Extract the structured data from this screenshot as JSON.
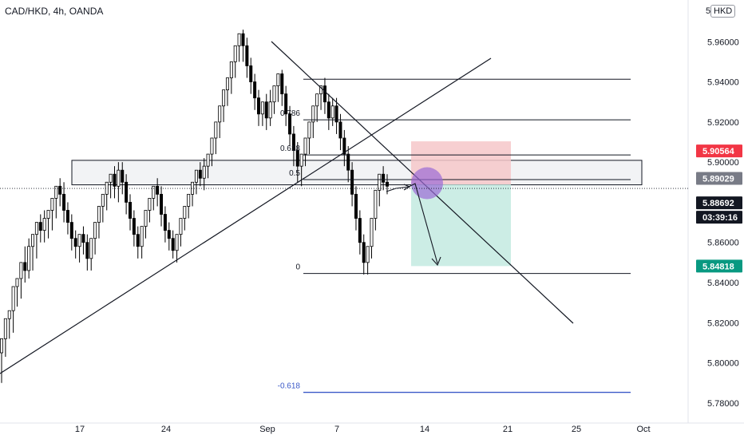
{
  "header": {
    "title": "CAD/HKD, 4h, OANDA",
    "currency": "HKD",
    "top_label": "5"
  },
  "colors": {
    "up": "#26a69a",
    "down": "#131722",
    "candle": "#000000",
    "fib_line": "#131722",
    "fib_ext": "#3c5ac8",
    "stop_zone": "#f6c7c9",
    "target_zone": "#bfe8df",
    "circle": "#9b6bd6",
    "sell_badge": "#f23645",
    "buy_badge": "#089981",
    "current_badge": "#131722",
    "mid_badge": "#787b86"
  },
  "chart_data": {
    "type": "candlestick",
    "symbol": "CAD/HKD",
    "interval": "4h",
    "source": "OANDA",
    "ylim": [
      5.77,
      5.98
    ],
    "y_ticks": [
      "5.96000",
      "5.94000",
      "5.92000",
      "5.90000",
      "5.88000",
      "5.86000",
      "5.84000",
      "5.82000",
      "5.80000",
      "5.78000"
    ],
    "x_labels": [
      "17",
      "24",
      "Sep",
      "7",
      "14",
      "21",
      "25",
      "Oct"
    ],
    "fib_levels": [
      {
        "label": "0.786",
        "price": 5.9211
      },
      {
        "label": "0.618",
        "price": 5.9036
      },
      {
        "label": "0.5",
        "price": 5.8913
      },
      {
        "label": "0",
        "price": 5.8445
      },
      {
        "label": "-0.618",
        "price": 5.7853
      }
    ],
    "fib_top_price": 5.9413,
    "zone": {
      "top": 5.9009,
      "bottom": 5.8887
    },
    "position": {
      "stop": 5.9056,
      "entry": 5.8889,
      "target": 5.8482
    },
    "price_badges": [
      {
        "value": "5.90564",
        "kind": "sell",
        "price": 5.9056
      },
      {
        "value": "5.89029",
        "kind": "mid",
        "price": 5.8903
      },
      {
        "value": "5.88692",
        "kind": "current",
        "price": 5.8869
      },
      {
        "value": "03:39:16",
        "kind": "timer",
        "price": 5.8869
      },
      {
        "value": "5.84818",
        "kind": "buy",
        "price": 5.8482
      }
    ],
    "candles": [
      [
        5.805,
        5.812,
        5.796,
        5.79
      ],
      [
        5.812,
        5.822,
        5.806,
        5.803
      ],
      [
        5.822,
        5.826,
        5.814,
        5.812
      ],
      [
        5.826,
        5.838,
        5.818,
        5.815
      ],
      [
        5.838,
        5.842,
        5.83,
        5.828
      ],
      [
        5.842,
        5.85,
        5.836,
        5.832
      ],
      [
        5.85,
        5.846,
        5.858,
        5.84
      ],
      [
        5.846,
        5.858,
        5.862,
        5.842
      ],
      [
        5.858,
        5.864,
        5.85,
        5.846
      ],
      [
        5.864,
        5.87,
        5.856,
        5.852
      ],
      [
        5.87,
        5.866,
        5.874,
        5.86
      ],
      [
        5.866,
        5.872,
        5.876,
        5.86
      ],
      [
        5.872,
        5.876,
        5.866,
        5.862
      ],
      [
        5.876,
        5.882,
        5.87,
        5.866
      ],
      [
        5.882,
        5.888,
        5.876,
        5.872
      ],
      [
        5.888,
        5.884,
        5.892,
        5.878
      ],
      [
        5.884,
        5.876,
        5.89,
        5.87
      ],
      [
        5.876,
        5.87,
        5.88,
        5.864
      ],
      [
        5.87,
        5.862,
        5.874,
        5.856
      ],
      [
        5.862,
        5.858,
        5.866,
        5.852
      ],
      [
        5.858,
        5.864,
        5.852,
        5.85
      ],
      [
        5.864,
        5.86,
        5.868,
        5.854
      ],
      [
        5.86,
        5.852,
        5.864,
        5.846
      ],
      [
        5.852,
        5.862,
        5.848,
        5.846
      ],
      [
        5.862,
        5.87,
        5.858,
        5.854
      ],
      [
        5.87,
        5.878,
        5.864,
        5.862
      ],
      [
        5.878,
        5.884,
        5.872,
        5.87
      ],
      [
        5.884,
        5.89,
        5.878,
        5.876
      ],
      [
        5.89,
        5.894,
        5.884,
        5.882
      ],
      [
        5.894,
        5.888,
        5.898,
        5.882
      ],
      [
        5.888,
        5.896,
        5.9,
        5.88
      ],
      [
        5.896,
        5.89,
        5.9,
        5.884
      ],
      [
        5.89,
        5.88,
        5.894,
        5.874
      ],
      [
        5.88,
        5.872,
        5.884,
        5.866
      ],
      [
        5.872,
        5.864,
        5.876,
        5.858
      ],
      [
        5.864,
        5.858,
        5.868,
        5.852
      ],
      [
        5.858,
        5.868,
        5.854,
        5.852
      ],
      [
        5.868,
        5.876,
        5.864,
        5.862
      ],
      [
        5.876,
        5.882,
        5.872,
        5.87
      ],
      [
        5.882,
        5.888,
        5.878,
        5.876
      ],
      [
        5.888,
        5.884,
        5.892,
        5.878
      ],
      [
        5.884,
        5.874,
        5.888,
        5.868
      ],
      [
        5.874,
        5.866,
        5.878,
        5.86
      ],
      [
        5.866,
        5.862,
        5.87,
        5.856
      ],
      [
        5.862,
        5.856,
        5.866,
        5.852
      ],
      [
        5.856,
        5.864,
        5.852,
        5.85
      ],
      [
        5.864,
        5.872,
        5.86,
        5.858
      ],
      [
        5.872,
        5.878,
        5.868,
        5.866
      ],
      [
        5.878,
        5.884,
        5.874,
        5.872
      ],
      [
        5.884,
        5.89,
        5.88,
        5.878
      ],
      [
        5.89,
        5.896,
        5.886,
        5.884
      ],
      [
        5.896,
        5.892,
        5.9,
        5.888
      ],
      [
        5.892,
        5.898,
        5.902,
        5.886
      ],
      [
        5.898,
        5.904,
        5.894,
        5.892
      ],
      [
        5.904,
        5.912,
        5.9,
        5.898
      ],
      [
        5.912,
        5.92,
        5.906,
        5.904
      ],
      [
        5.92,
        5.928,
        5.914,
        5.912
      ],
      [
        5.928,
        5.936,
        5.922,
        5.92
      ],
      [
        5.936,
        5.942,
        5.93,
        5.928
      ],
      [
        5.942,
        5.95,
        5.936,
        5.934
      ],
      [
        5.95,
        5.958,
        5.944,
        5.942
      ],
      [
        5.958,
        5.964,
        5.952,
        5.95
      ],
      [
        5.964,
        5.958,
        5.966,
        5.95
      ],
      [
        5.958,
        5.948,
        5.962,
        5.942
      ],
      [
        5.948,
        5.94,
        5.952,
        5.934
      ],
      [
        5.94,
        5.932,
        5.944,
        5.926
      ],
      [
        5.932,
        5.924,
        5.936,
        5.918
      ],
      [
        5.924,
        5.93,
        5.92,
        5.918
      ],
      [
        5.93,
        5.922,
        5.934,
        5.916
      ],
      [
        5.922,
        5.93,
        5.936,
        5.918
      ],
      [
        5.93,
        5.938,
        5.926,
        5.924
      ],
      [
        5.938,
        5.944,
        5.932,
        5.93
      ],
      [
        5.944,
        5.934,
        5.946,
        5.928
      ],
      [
        5.934,
        5.924,
        5.938,
        5.918
      ],
      [
        5.924,
        5.914,
        5.928,
        5.908
      ],
      [
        5.914,
        5.906,
        5.918,
        5.898
      ],
      [
        5.906,
        5.898,
        5.91,
        5.89
      ],
      [
        5.898,
        5.904,
        5.894,
        5.888
      ],
      [
        5.904,
        5.912,
        5.9,
        5.898
      ],
      [
        5.912,
        5.92,
        5.906,
        5.904
      ],
      [
        5.92,
        5.928,
        5.914,
        5.912
      ],
      [
        5.928,
        5.934,
        5.922,
        5.92
      ],
      [
        5.934,
        5.938,
        5.928,
        5.926
      ],
      [
        5.938,
        5.93,
        5.942,
        5.924
      ],
      [
        5.93,
        5.922,
        5.934,
        5.916
      ],
      [
        5.922,
        5.928,
        5.932,
        5.918
      ],
      [
        5.928,
        5.92,
        5.932,
        5.914
      ],
      [
        5.92,
        5.912,
        5.924,
        5.906
      ],
      [
        5.912,
        5.904,
        5.916,
        5.898
      ],
      [
        5.904,
        5.896,
        5.908,
        5.89
      ],
      [
        5.896,
        5.884,
        5.9,
        5.878
      ],
      [
        5.884,
        5.872,
        5.888,
        5.866
      ],
      [
        5.872,
        5.86,
        5.876,
        5.854
      ],
      [
        5.86,
        5.85,
        5.864,
        5.844
      ],
      [
        5.85,
        5.858,
        5.846,
        5.844
      ],
      [
        5.858,
        5.872,
        5.854,
        5.852
      ],
      [
        5.872,
        5.886,
        5.868,
        5.866
      ],
      [
        5.886,
        5.894,
        5.88,
        5.878
      ],
      [
        5.894,
        5.89,
        5.898,
        5.886
      ],
      [
        5.89,
        5.888,
        5.894,
        5.884
      ]
    ]
  }
}
